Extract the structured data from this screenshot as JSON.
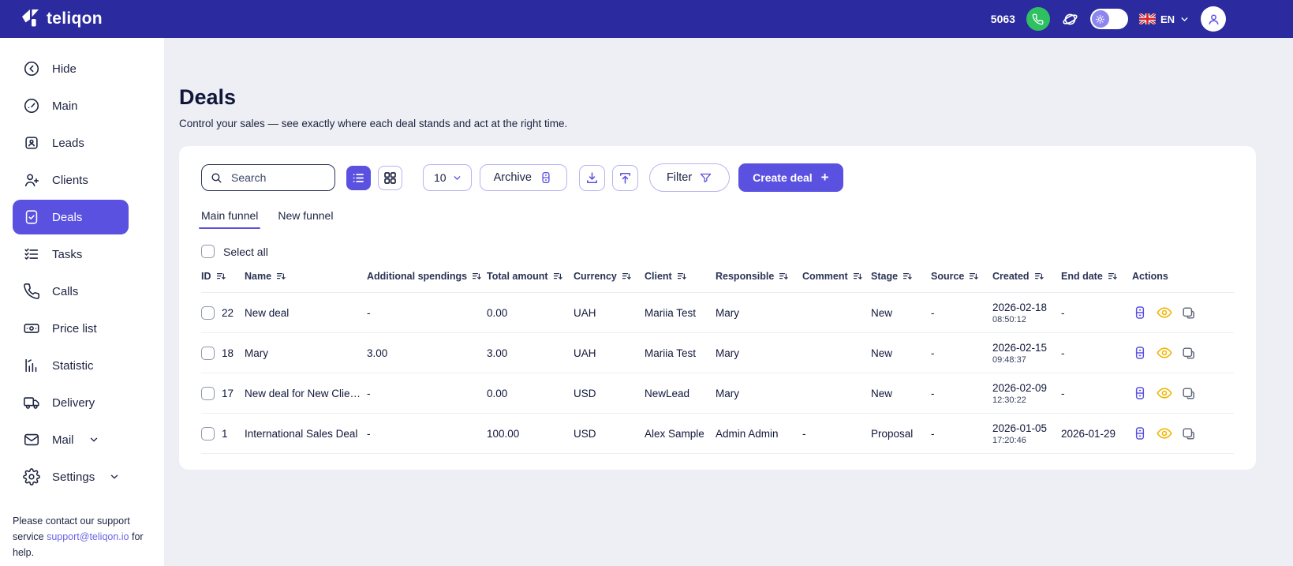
{
  "colors": {
    "topbar_bg": "#2b2a9e",
    "accent_purple": "#5a51e1",
    "phone_green": "#2fc062",
    "eye_yellow": "#f0b400"
  },
  "topbar": {
    "brand": "teliqon",
    "balance": "5063",
    "language": "EN"
  },
  "sidebar": {
    "items": [
      {
        "label": "Hide",
        "icon": "arrow-left-circle-icon",
        "active": false,
        "expandable": false
      },
      {
        "label": "Main",
        "icon": "dashboard-icon",
        "active": false,
        "expandable": false
      },
      {
        "label": "Leads",
        "icon": "leads-badge-icon",
        "active": false,
        "expandable": false
      },
      {
        "label": "Clients",
        "icon": "person-plus-icon",
        "active": false,
        "expandable": false
      },
      {
        "label": "Deals",
        "icon": "file-check-icon",
        "active": true,
        "expandable": false
      },
      {
        "label": "Tasks",
        "icon": "checklist-icon",
        "active": false,
        "expandable": false
      },
      {
        "label": "Calls",
        "icon": "phone-icon",
        "active": false,
        "expandable": false
      },
      {
        "label": "Price list",
        "icon": "banknote-icon",
        "active": false,
        "expandable": false
      },
      {
        "label": "Statistic",
        "icon": "chart-icon",
        "active": false,
        "expandable": false
      },
      {
        "label": "Delivery",
        "icon": "truck-icon",
        "active": false,
        "expandable": false
      },
      {
        "label": "Mail",
        "icon": "mail-icon",
        "active": false,
        "expandable": true
      },
      {
        "label": "Settings",
        "icon": "gear-icon",
        "active": false,
        "expandable": true
      }
    ],
    "support": {
      "before": "Please contact our support service ",
      "link": "support@teliqon.io",
      "after": " for help."
    }
  },
  "page": {
    "title": "Deals",
    "subtitle": "Control your sales — see exactly where each deal stands and act at the right time."
  },
  "toolbar": {
    "search_placeholder": "Search",
    "page_size": "10",
    "archive_label": "Archive",
    "filter_label": "Filter",
    "create_deal_label": "Create deal",
    "create_deal_plus": "+"
  },
  "tabs": [
    {
      "label": "Main funnel",
      "active": true
    },
    {
      "label": "New funnel",
      "active": false
    }
  ],
  "select_all_label": "Select all",
  "table": {
    "columns": [
      {
        "label": "ID",
        "sortable": true
      },
      {
        "label": "Name",
        "sortable": true
      },
      {
        "label": "Additional spendings",
        "sortable": true
      },
      {
        "label": "Total amount",
        "sortable": true
      },
      {
        "label": "Currency",
        "sortable": true
      },
      {
        "label": "Client",
        "sortable": true
      },
      {
        "label": "Responsible",
        "sortable": true
      },
      {
        "label": "Comment",
        "sortable": true
      },
      {
        "label": "Stage",
        "sortable": true
      },
      {
        "label": "Source",
        "sortable": true
      },
      {
        "label": "Created",
        "sortable": true
      },
      {
        "label": "End date",
        "sortable": true
      },
      {
        "label": "Actions",
        "sortable": false
      }
    ],
    "rows": [
      {
        "id": "22",
        "name": "New deal",
        "additional_spendings": "-",
        "total_amount": "0.00",
        "currency": "UAH",
        "client": "Mariia Test",
        "responsible": "Mary",
        "comment": "",
        "stage": "New",
        "source": "-",
        "created_date": "2026-02-18",
        "created_time": "08:50:12",
        "end_date": "-"
      },
      {
        "id": "18",
        "name": "Mary",
        "additional_spendings": "3.00",
        "total_amount": "3.00",
        "currency": "UAH",
        "client": "Mariia Test",
        "responsible": "Mary",
        "comment": "",
        "stage": "New",
        "source": "-",
        "created_date": "2026-02-15",
        "created_time": "09:48:37",
        "end_date": "-"
      },
      {
        "id": "17",
        "name": "New deal for New Clie…",
        "additional_spendings": "-",
        "total_amount": "0.00",
        "currency": "USD",
        "client": "NewLead",
        "responsible": "Mary",
        "comment": "",
        "stage": "New",
        "source": "-",
        "created_date": "2026-02-09",
        "created_time": "12:30:22",
        "end_date": "-"
      },
      {
        "id": "1",
        "name": "International Sales Deal",
        "additional_spendings": "-",
        "total_amount": "100.00",
        "currency": "USD",
        "client": "Alex Sample",
        "responsible": "Admin Admin",
        "comment": "-",
        "stage": "Proposal",
        "source": "-",
        "created_date": "2026-01-05",
        "created_time": "17:20:46",
        "end_date": "2026-01-29"
      }
    ],
    "row_actions": [
      {
        "name": "archive",
        "icon": "archive-icon"
      },
      {
        "name": "view",
        "icon": "eye-icon"
      },
      {
        "name": "copy",
        "icon": "copy-icon"
      }
    ]
  }
}
